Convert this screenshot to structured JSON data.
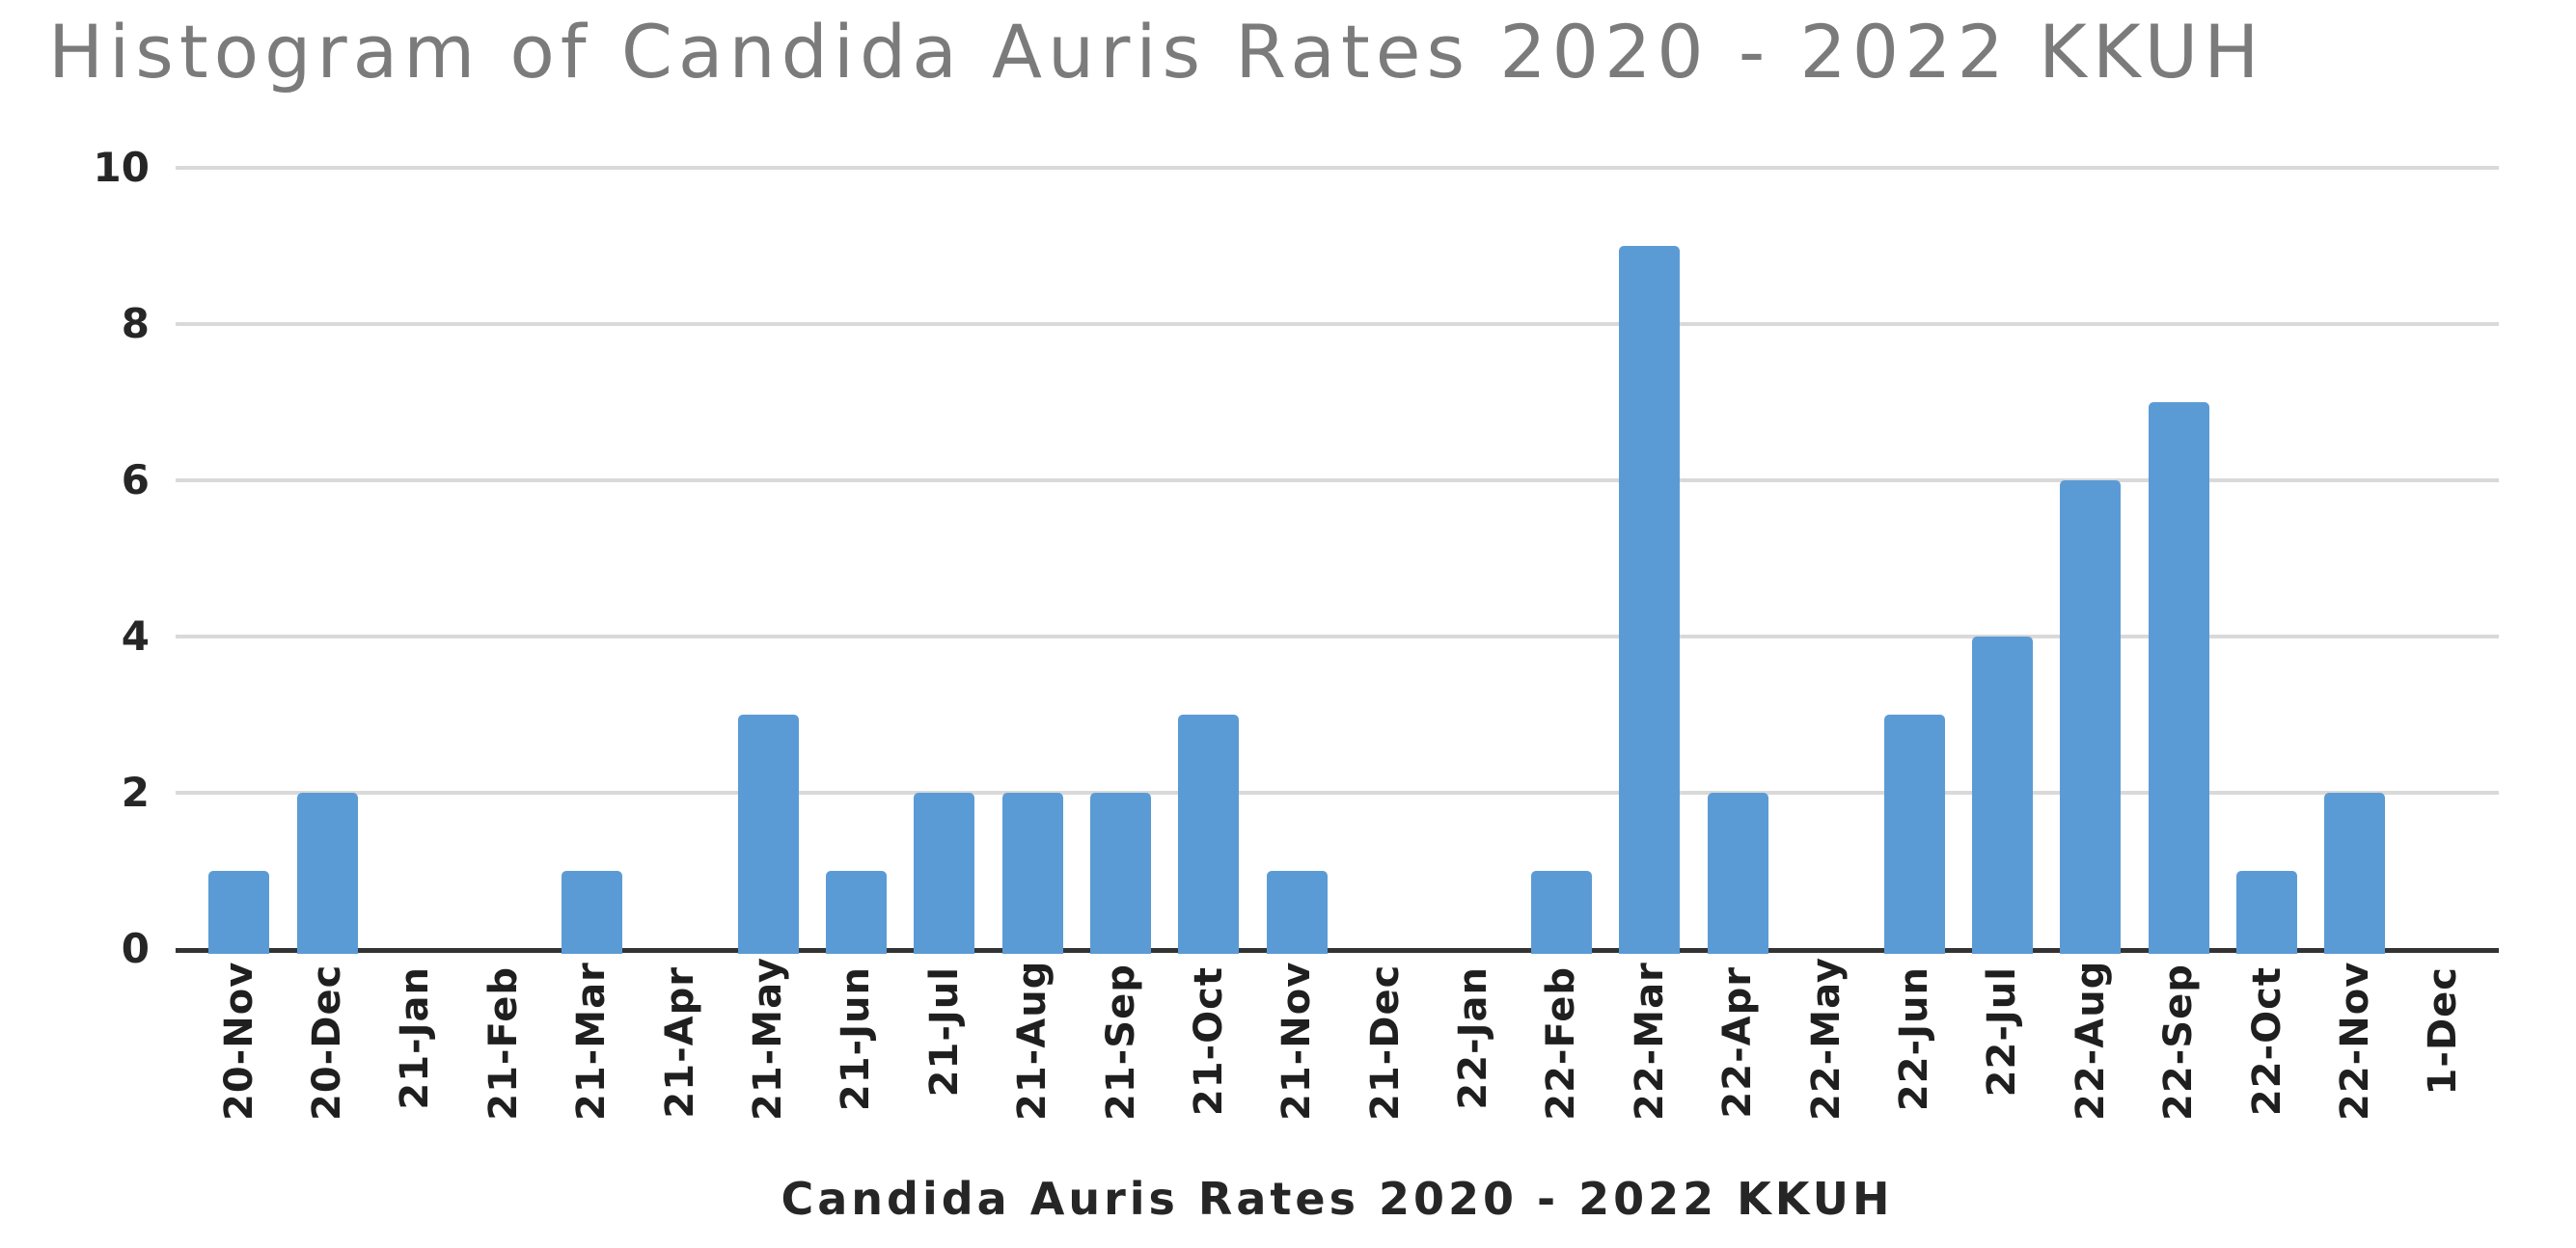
{
  "chart_data": {
    "type": "bar",
    "title": "Histogram of Candida Auris Rates 2020 - 2022 KKUH",
    "xlabel": "Candida Auris Rates 2020 - 2022 KKUH",
    "ylabel": "",
    "categories": [
      "20-Nov",
      "20-Dec",
      "21-Jan",
      "21-Feb",
      "21-Mar",
      "21-Apr",
      "21-May",
      "21-Jun",
      "21-Jul",
      "21-Aug",
      "21-Sep",
      "21-Oct",
      "21-Nov",
      "21-Dec",
      "22-Jan",
      "22-Feb",
      "22-Mar",
      "22-Apr",
      "22-May",
      "22-Jun",
      "22-Jul",
      "22-Aug",
      "22-Sep",
      "22-Oct",
      "22-Nov",
      "1-Dec"
    ],
    "values": [
      1,
      2,
      0,
      0,
      1,
      0,
      3,
      1,
      2,
      2,
      2,
      3,
      1,
      0,
      0,
      1,
      9,
      2,
      0,
      3,
      4,
      6,
      7,
      1,
      2,
      0
    ],
    "ylim": [
      0,
      10
    ],
    "yticks": [
      0,
      2,
      4,
      6,
      8,
      10
    ],
    "grid": true,
    "legend": false,
    "bar_color": "#5b9bd5",
    "gridline_color": "#d9d9d9",
    "axis_line_color": "#333333",
    "title_color": "#7b7b7b",
    "tick_label_color": "#1f1f1f"
  }
}
